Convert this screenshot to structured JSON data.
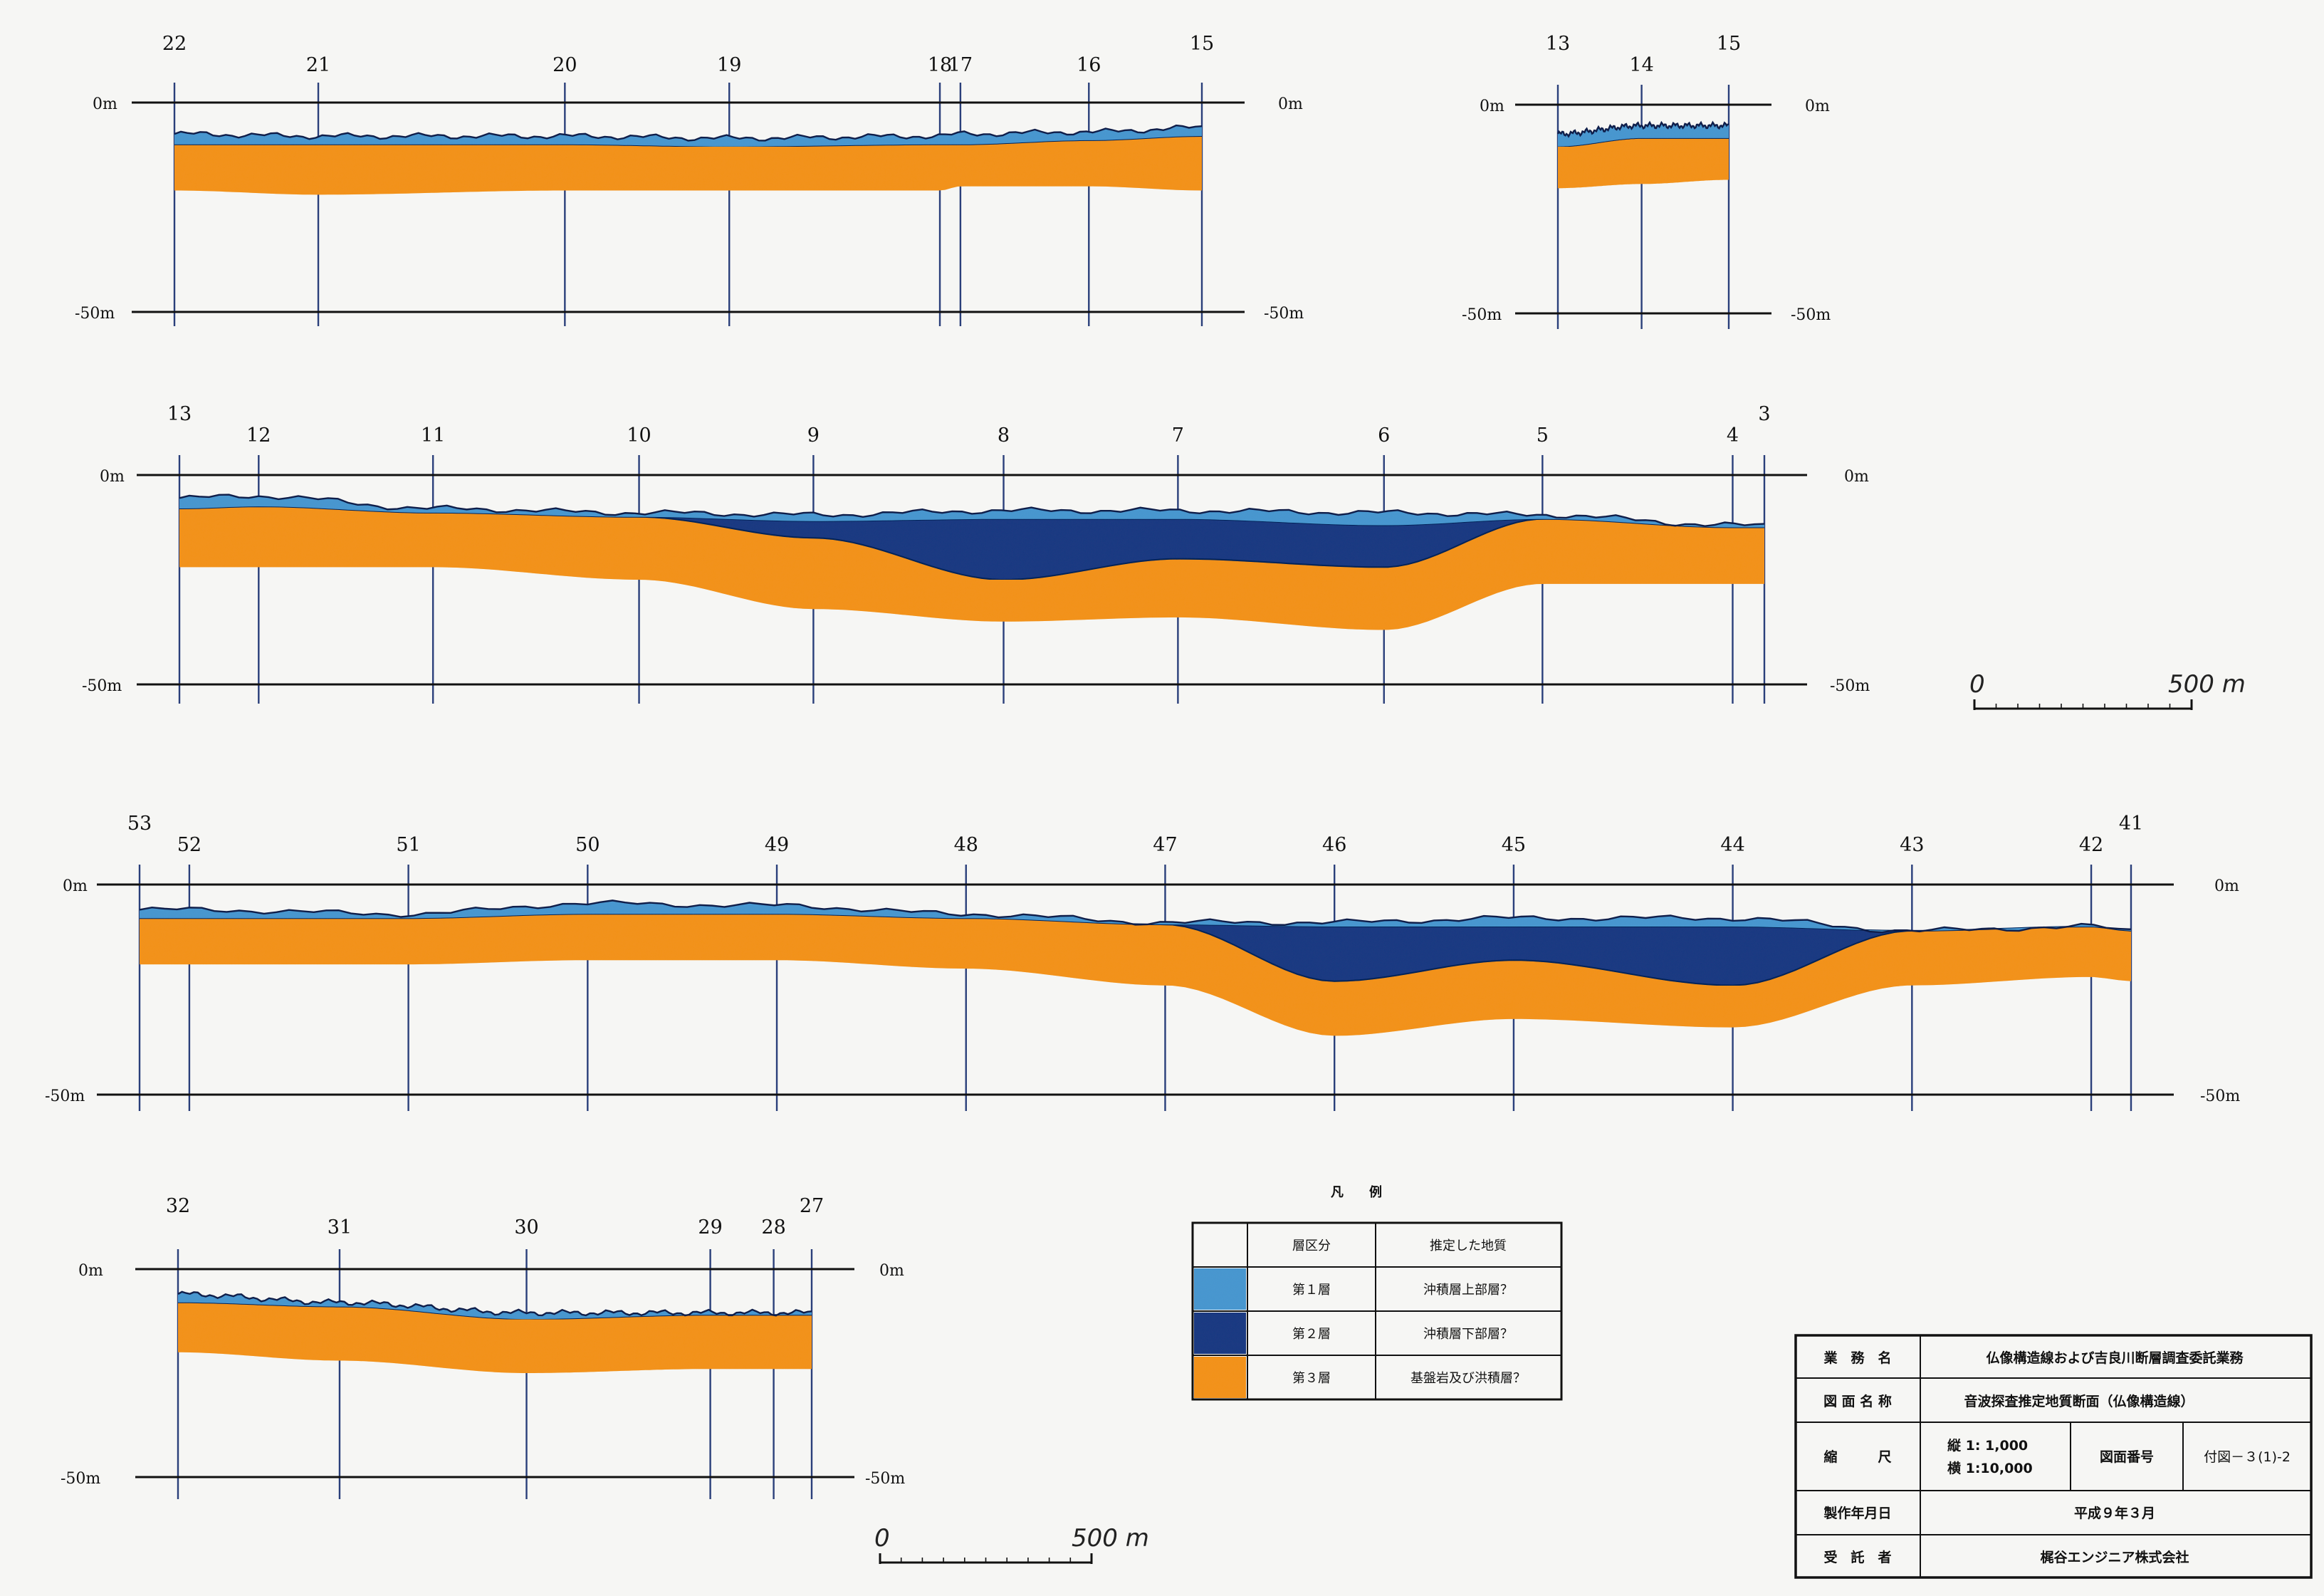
{
  "colors": {
    "layer1": "#4a97cf",
    "layer2": "#1f3b82",
    "layer3": "#f2921f",
    "baseline": "#2a3f7a",
    "axis": "#111111"
  },
  "sections": [
    {
      "id": "section-22-15",
      "top_label": "0m",
      "bottom_label": "-50m",
      "boreholes": [
        "22",
        "21",
        "20",
        "19",
        "18",
        "17",
        "16",
        "15"
      ],
      "profile": {
        "stations_pos": [
          0,
          0.14,
          0.38,
          0.54,
          0.745,
          0.765,
          0.89,
          1.0
        ],
        "surface_depth": [
          -7.5,
          -8,
          -8,
          -8.5,
          -8,
          -7.5,
          -7,
          -6
        ],
        "l1_base_depth": [
          -10,
          -10,
          -10,
          -10.5,
          -10,
          -10,
          -9,
          -8
        ],
        "l2_base_depth": [
          -10,
          -10,
          -10,
          -10.5,
          -10,
          -10,
          -9,
          -8
        ],
        "l3_base_depth": [
          -21,
          -22,
          -21,
          -21,
          -21,
          -20,
          -20,
          -21
        ]
      }
    },
    {
      "id": "section-13-15",
      "top_label": "0m",
      "bottom_label": "-50m",
      "boreholes": [
        "13",
        "14",
        "15"
      ],
      "profile": {
        "stations_pos": [
          0,
          0.49,
          1.0
        ],
        "surface_depth": [
          -7,
          -5,
          -5
        ],
        "l1_base_depth": [
          -10,
          -8,
          -8
        ],
        "l2_base_depth": [
          -10,
          -8,
          -8
        ],
        "l3_base_depth": [
          -20,
          -19,
          -18
        ]
      }
    },
    {
      "id": "section-13-3",
      "top_label": "0m",
      "bottom_label": "-50m",
      "boreholes": [
        "13",
        "12",
        "11",
        "10",
        "9",
        "8",
        "7",
        "6",
        "5",
        "4",
        "3"
      ],
      "profile": {
        "stations_pos": [
          0,
          0.05,
          0.16,
          0.29,
          0.4,
          0.52,
          0.63,
          0.76,
          0.86,
          0.98,
          1.0
        ],
        "surface_depth": [
          -5.5,
          -5,
          -8,
          -9,
          -9.5,
          -8.5,
          -8.5,
          -9,
          -9.5,
          -12,
          -12
        ],
        "l1_base_depth": [
          -8,
          -7.5,
          -9,
          -10,
          -11,
          -10.5,
          -10.5,
          -12,
          -10.5,
          -12.5,
          -12.5
        ],
        "l2_base_depth": [
          -8,
          -7.5,
          -9,
          -10,
          -15,
          -25,
          -20,
          -22,
          -10.5,
          -12.5,
          -12.5
        ],
        "l3_base_depth": [
          -22,
          -22,
          -22,
          -25,
          -32,
          -35,
          -34,
          -37,
          -26,
          -26,
          -26
        ]
      }
    },
    {
      "id": "section-53-41",
      "top_label": "0m",
      "bottom_label": "-50m",
      "boreholes": [
        "53",
        "52",
        "51",
        "50",
        "49",
        "48",
        "47",
        "46",
        "45",
        "44",
        "43",
        "42",
        "41"
      ],
      "profile": {
        "stations_pos": [
          0,
          0.025,
          0.135,
          0.225,
          0.32,
          0.415,
          0.515,
          0.6,
          0.69,
          0.8,
          0.89,
          0.98,
          1.0
        ],
        "surface_depth": [
          -6,
          -6,
          -7,
          -4.5,
          -5,
          -7,
          -9,
          -9,
          -8,
          -8,
          -11,
          -10,
          -11
        ],
        "l1_base_depth": [
          -8,
          -8,
          -8,
          -7,
          -7,
          -8,
          -9.5,
          -10,
          -10,
          -10,
          -11,
          -10,
          -11
        ],
        "l2_base_depth": [
          -8,
          -8,
          -8,
          -7,
          -7,
          -8,
          -9.5,
          -23,
          -18,
          -24,
          -11,
          -10,
          -11
        ],
        "l3_base_depth": [
          -19,
          -19,
          -19,
          -18,
          -18,
          -20,
          -24,
          -36,
          -32,
          -34,
          -24,
          -22,
          -23
        ]
      }
    },
    {
      "id": "section-32-27",
      "top_label": "0m",
      "bottom_label": "-50m",
      "boreholes": [
        "32",
        "31",
        "30",
        "29",
        "28",
        "27"
      ],
      "profile": {
        "stations_pos": [
          0,
          0.255,
          0.55,
          0.84,
          0.94,
          1.0
        ],
        "surface_depth": [
          -6,
          -8,
          -10.5,
          -10.5,
          -10.5,
          -10.5
        ],
        "l1_base_depth": [
          -8,
          -9,
          -12,
          -11,
          -11,
          -11
        ],
        "l2_base_depth": [
          -8,
          -9,
          -12,
          -11,
          -11,
          -11
        ],
        "l3_base_depth": [
          -20,
          -22,
          -25,
          -24,
          -24,
          -24
        ]
      }
    }
  ],
  "scales": [
    {
      "id": "scale-upper",
      "zero": "0",
      "length": "500 m"
    },
    {
      "id": "scale-lower",
      "zero": "0",
      "length": "500 m"
    }
  ],
  "legend": {
    "title": "凡　　例",
    "header_class": "層区分",
    "header_geology": "推定した地質",
    "rows": [
      {
        "color": "#4a97cf",
        "class": "第１層",
        "geology": "沖積層上部層？"
      },
      {
        "color": "#1f3b82",
        "class": "第２層",
        "geology": "沖積層下部層？"
      },
      {
        "color": "#f2921f",
        "class": "第３層",
        "geology": "基盤岩及び洪積層？"
      }
    ]
  },
  "title_block": {
    "work_name_label": "業　務　名",
    "work_name": "仏像構造線および吉良川断層調査委託業務",
    "drawing_name_label": "図 面 名 称",
    "drawing_name": "音波探査推定地質断面（仏像構造線）",
    "scale_label": "縮　　　尺",
    "scale_vertical": "縦 1: 1,000",
    "scale_horizontal": "横 1:10,000",
    "drawing_no_label": "図面番号",
    "drawing_no": "付図－３(1)-2",
    "date_label": "製作年月日",
    "date": "平成９年３月",
    "contractor_label": "受　託　者",
    "contractor": "梶谷エンジニア株式会社"
  }
}
